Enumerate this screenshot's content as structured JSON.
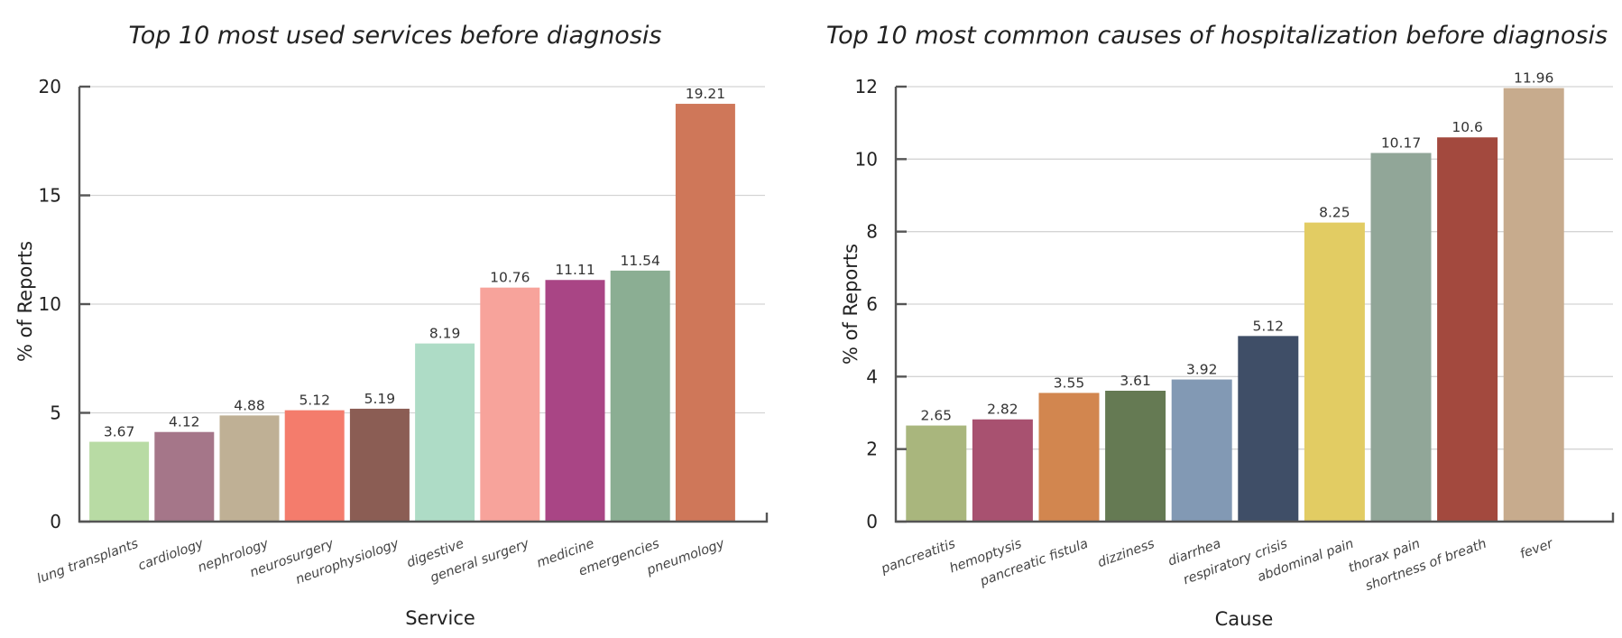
{
  "chart_data": [
    {
      "type": "bar",
      "title": "Top 10 most used services before diagnosis",
      "xlabel": "Service",
      "ylabel": "% of Reports",
      "ylim": [
        0,
        20
      ],
      "yticks": [
        0,
        5,
        10,
        15,
        20
      ],
      "grid": true,
      "categories": [
        "lung transplants",
        "cardiology",
        "nephrology",
        "neurosurgery",
        "neurophysiology",
        "digestive",
        "general surgery",
        "medicine",
        "emergencies",
        "pneumology"
      ],
      "values": [
        3.67,
        4.12,
        4.88,
        5.12,
        5.19,
        8.19,
        10.76,
        11.11,
        11.54,
        19.21
      ],
      "value_labels": [
        "3.67",
        "4.12",
        "4.88",
        "5.12",
        "5.19",
        "8.19",
        "10.76",
        "11.11",
        "11.54",
        "19.21"
      ],
      "colors": [
        "#b8dba4",
        "#a57689",
        "#bfb095",
        "#f47c6c",
        "#8b5d54",
        "#aedcc6",
        "#f7a39b",
        "#a94585",
        "#8bae93",
        "#cf7759"
      ]
    },
    {
      "type": "bar",
      "title": "Top 10 most common causes of hospitalization before diagnosis",
      "xlabel": "Cause",
      "ylabel": "% of Reports",
      "ylim": [
        0,
        12
      ],
      "yticks": [
        0,
        2,
        4,
        6,
        8,
        10,
        12
      ],
      "grid": true,
      "categories": [
        "pancreatitis",
        "hemoptysis",
        "pancreatic fistula",
        "dizziness",
        "diarrhea",
        "respiratory crisis",
        "abdominal pain",
        "thorax pain",
        "shortness of breath",
        "fever"
      ],
      "values": [
        2.65,
        2.82,
        3.55,
        3.61,
        3.92,
        5.12,
        8.25,
        10.17,
        10.6,
        11.96
      ],
      "value_labels": [
        "2.65",
        "2.82",
        "3.55",
        "3.61",
        "3.92",
        "5.12",
        "8.25",
        "10.17",
        "10.6",
        "11.96"
      ],
      "colors": [
        "#a9b67d",
        "#a85170",
        "#d2864f",
        "#657a53",
        "#8299b4",
        "#3f4e67",
        "#e2cc63",
        "#91a698",
        "#a3493e",
        "#c7ab8d"
      ]
    }
  ]
}
